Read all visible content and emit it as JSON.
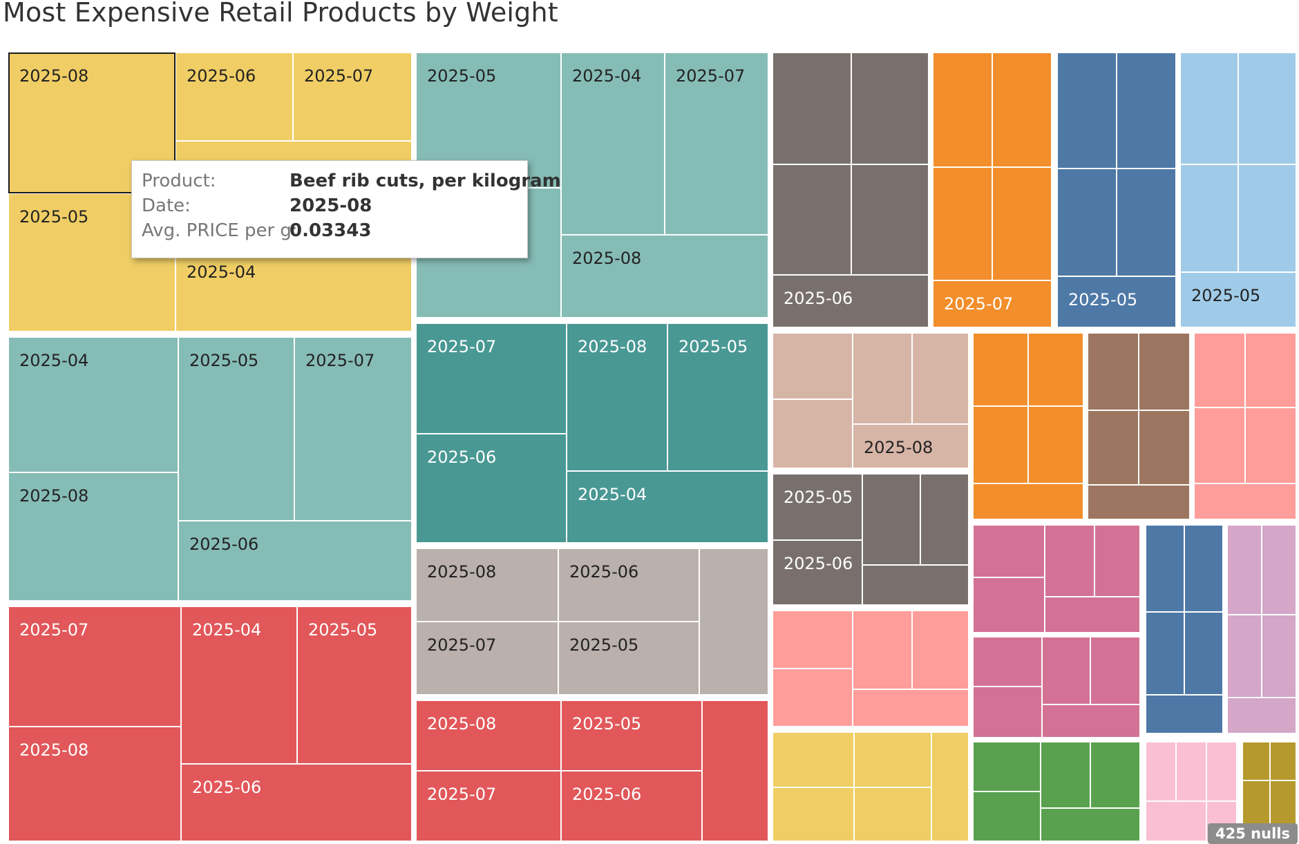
{
  "chart_data": {
    "type": "treemap",
    "title": "Most Expensive Retail Products by Weight",
    "groups": [
      {
        "color": "#f0ce65",
        "cells": [
          {
            "label": "2025-08",
            "selected": true
          },
          {
            "label": "2025-06"
          },
          {
            "label": "2025-07"
          },
          {
            "label": ""
          },
          {
            "label": "2025-05"
          },
          {
            "label": "2025-04"
          }
        ]
      },
      {
        "color": "#86bcb6",
        "cells": [
          {
            "label": "2025-04"
          },
          {
            "label": "2025-05"
          },
          {
            "label": "2025-07"
          },
          {
            "label": "2025-08"
          },
          {
            "label": "2025-06"
          }
        ]
      },
      {
        "color": "#e1575a",
        "cells": [
          {
            "label": "2025-07"
          },
          {
            "label": "2025-04"
          },
          {
            "label": "2025-05"
          },
          {
            "label": "2025-08"
          },
          {
            "label": "2025-06"
          }
        ]
      },
      {
        "color": "#86bcb6",
        "cells": [
          {
            "label": "2025-05"
          },
          {
            "label": ""
          },
          {
            "label": "2025-04"
          },
          {
            "label": "2025-07"
          },
          {
            "label": "2025-08"
          }
        ]
      },
      {
        "color": "#499894",
        "cells": [
          {
            "label": "2025-07"
          },
          {
            "label": "2025-08"
          },
          {
            "label": "2025-05"
          },
          {
            "label": "2025-06"
          },
          {
            "label": "2025-04"
          }
        ]
      },
      {
        "color": "#bab0ac",
        "cells": [
          {
            "label": "2025-08"
          },
          {
            "label": "2025-06"
          },
          {
            "label": ""
          },
          {
            "label": "2025-07"
          },
          {
            "label": "2025-05"
          }
        ]
      },
      {
        "color": "#e1575a",
        "cells": [
          {
            "label": "2025-08"
          },
          {
            "label": "2025-05"
          },
          {
            "label": ""
          },
          {
            "label": "2025-07"
          },
          {
            "label": "2025-06"
          }
        ]
      },
      {
        "color": "#79706e",
        "cells": [
          {
            "label": ""
          },
          {
            "label": ""
          },
          {
            "label": ""
          },
          {
            "label": ""
          },
          {
            "label": "2025-06"
          }
        ]
      },
      {
        "color": "#f28e2b",
        "cells": [
          {
            "label": ""
          },
          {
            "label": ""
          },
          {
            "label": ""
          },
          {
            "label": ""
          },
          {
            "label": "2025-07"
          }
        ]
      },
      {
        "color": "#4e79a7",
        "cells": [
          {
            "label": ""
          },
          {
            "label": ""
          },
          {
            "label": ""
          },
          {
            "label": ""
          },
          {
            "label": "2025-05"
          }
        ]
      },
      {
        "color": "#a0cbe8",
        "cells": [
          {
            "label": ""
          },
          {
            "label": ""
          },
          {
            "label": ""
          },
          {
            "label": ""
          },
          {
            "label": "2025-05"
          }
        ]
      },
      {
        "color": "#d7b5a6",
        "cells": [
          {
            "label": ""
          },
          {
            "label": ""
          },
          {
            "label": ""
          },
          {
            "label": ""
          },
          {
            "label": "2025-08"
          }
        ]
      },
      {
        "color": "#79706e",
        "cells": [
          {
            "label": "2025-05"
          },
          {
            "label": ""
          },
          {
            "label": ""
          },
          {
            "label": "2025-06"
          },
          {
            "label": ""
          }
        ]
      },
      {
        "color": "#ff9d9a",
        "cells": [
          {
            "label": ""
          },
          {
            "label": ""
          },
          {
            "label": ""
          },
          {
            "label": ""
          },
          {
            "label": ""
          }
        ]
      },
      {
        "color": "#f0ce65",
        "cells": [
          {
            "label": ""
          },
          {
            "label": ""
          },
          {
            "label": ""
          },
          {
            "label": ""
          },
          {
            "label": ""
          }
        ]
      },
      {
        "color": "#f28e2b",
        "cells": [
          {
            "label": ""
          },
          {
            "label": ""
          },
          {
            "label": ""
          },
          {
            "label": ""
          },
          {
            "label": ""
          }
        ]
      },
      {
        "color": "#9c7660",
        "cells": [
          {
            "label": ""
          },
          {
            "label": ""
          },
          {
            "label": ""
          },
          {
            "label": ""
          },
          {
            "label": ""
          }
        ]
      },
      {
        "color": "#ff9d9a",
        "cells": [
          {
            "label": ""
          },
          {
            "label": ""
          },
          {
            "label": ""
          },
          {
            "label": ""
          },
          {
            "label": ""
          }
        ]
      },
      {
        "color": "#d37295",
        "cells": [
          {
            "label": ""
          },
          {
            "label": ""
          },
          {
            "label": ""
          },
          {
            "label": ""
          },
          {
            "label": ""
          }
        ]
      },
      {
        "color": "#4e79a7",
        "cells": [
          {
            "label": ""
          },
          {
            "label": ""
          },
          {
            "label": ""
          },
          {
            "label": ""
          },
          {
            "label": ""
          }
        ]
      },
      {
        "color": "#d4a6c8",
        "cells": [
          {
            "label": ""
          },
          {
            "label": ""
          },
          {
            "label": ""
          },
          {
            "label": ""
          },
          {
            "label": ""
          }
        ]
      },
      {
        "color": "#d37295",
        "cells": [
          {
            "label": ""
          },
          {
            "label": ""
          },
          {
            "label": ""
          },
          {
            "label": ""
          },
          {
            "label": ""
          }
        ]
      },
      {
        "color": "#59a14f",
        "cells": [
          {
            "label": ""
          },
          {
            "label": ""
          },
          {
            "label": ""
          },
          {
            "label": ""
          },
          {
            "label": ""
          }
        ]
      },
      {
        "color": "#fabfd2",
        "cells": [
          {
            "label": ""
          },
          {
            "label": ""
          },
          {
            "label": ""
          },
          {
            "label": ""
          },
          {
            "label": ""
          }
        ]
      },
      {
        "color": "#b6992d",
        "cells": [
          {
            "label": ""
          },
          {
            "label": ""
          },
          {
            "label": ""
          },
          {
            "label": ""
          }
        ]
      }
    ],
    "tooltip": [
      {
        "key": "Product:",
        "value": "Beef rib cuts, per kilogram"
      },
      {
        "key": "Date:",
        "value": "2025-08"
      },
      {
        "key": "Avg. PRICE per g:",
        "value": "0.03343"
      }
    ],
    "nulls_badge": "425 nulls"
  }
}
